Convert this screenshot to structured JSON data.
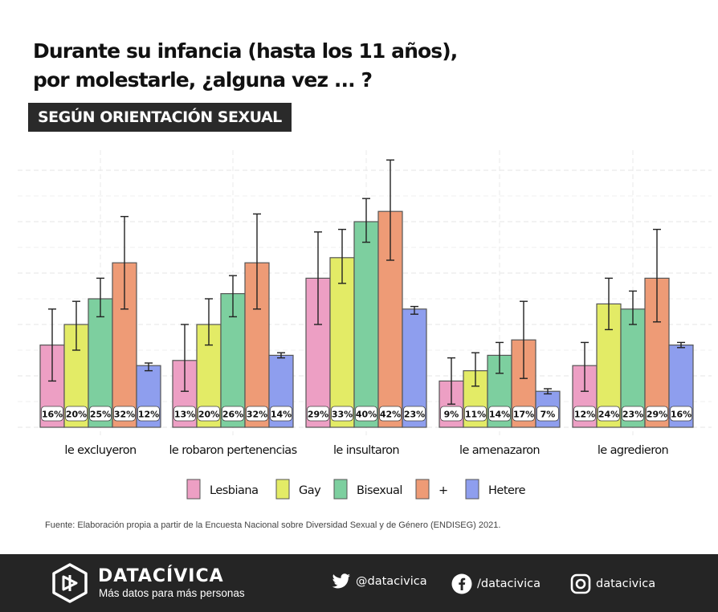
{
  "header": {
    "title_line1": "Durante su infancia (hasta los 11 años),",
    "title_line2": "por molestarle, ¿alguna vez ... ?",
    "subtitle": "SEGÚN ORIENTACIÓN SEXUAL"
  },
  "chart_data": {
    "type": "bar",
    "title": "Durante su infancia (hasta los 11 años), por molestarle, ¿alguna vez ... ?",
    "subtitle": "SEGÚN ORIENTACIÓN SEXUAL",
    "xlabel": "",
    "ylabel": "",
    "ylim": [
      0,
      50
    ],
    "grid": true,
    "legend_position": "bottom",
    "categories": [
      "le excluyeron",
      "le robaron pertenencias",
      "le insultaron",
      "le amenazaron",
      "le agredieron"
    ],
    "series": [
      {
        "name": "Lesbiana",
        "color": "#ED9FC4",
        "values": [
          16,
          13,
          29,
          9,
          12
        ],
        "labels": [
          "16%",
          "13%",
          "29%",
          "9%",
          "12%"
        ],
        "ci_low": [
          9,
          7,
          20,
          4.5,
          7
        ],
        "ci_high": [
          23,
          20,
          38,
          13.5,
          16.5
        ]
      },
      {
        "name": "Gay",
        "color": "#E3EB66",
        "values": [
          20,
          20,
          33,
          11,
          24
        ],
        "labels": [
          "20%",
          "20%",
          "33%",
          "11%",
          "24%"
        ],
        "ci_low": [
          15,
          16,
          28,
          8,
          19
        ],
        "ci_high": [
          24.5,
          25,
          38.5,
          14.5,
          29
        ]
      },
      {
        "name": "Bisexual",
        "color": "#7DCF9F",
        "values": [
          25,
          26,
          40,
          14,
          23
        ],
        "labels": [
          "25%",
          "26%",
          "40%",
          "14%",
          "23%"
        ],
        "ci_low": [
          21.5,
          21.5,
          36,
          10.5,
          20
        ],
        "ci_high": [
          29,
          29.5,
          44.5,
          16.5,
          26.5
        ]
      },
      {
        "name": "+",
        "color": "#EE9B76",
        "values": [
          32,
          32,
          42,
          17,
          29
        ],
        "labels": [
          "32%",
          "32%",
          "42%",
          "17%",
          "29%"
        ],
        "ci_low": [
          23,
          23,
          32.5,
          9.5,
          20.5
        ],
        "ci_high": [
          41,
          41.5,
          52,
          24.5,
          38.5
        ]
      },
      {
        "name": "Hetere",
        "color": "#8E9EEE",
        "values": [
          12,
          14,
          23,
          7,
          16
        ],
        "labels": [
          "12%",
          "14%",
          "23%",
          "7%",
          "16%"
        ],
        "ci_low": [
          11,
          13.5,
          22,
          6.5,
          15.5
        ],
        "ci_high": [
          12.5,
          14.5,
          23.5,
          7.5,
          16.5
        ]
      }
    ]
  },
  "source": "Fuente: Elaboración propia a partir de la Encuesta Nacional sobre Diversidad Sexual y de Género (ENDISEG) 2021.",
  "footer": {
    "brand": "DATACÍVICA",
    "tagline": "Más datos para más personas",
    "twitter": "@datacivica",
    "facebook": "/datacivica",
    "instagram": "datacivica"
  }
}
